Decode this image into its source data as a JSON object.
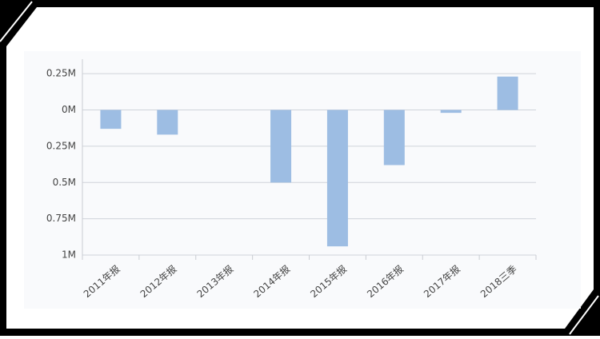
{
  "chart_data": {
    "type": "bar",
    "categories": [
      "2011年报",
      "2012年报",
      "2013年报",
      "2014年报",
      "2015年报",
      "2016年报",
      "2017年报",
      "2018三季"
    ],
    "values": [
      -0.13,
      -0.17,
      0,
      -0.5,
      -0.94,
      -0.38,
      -0.02,
      0.23
    ],
    "color": "#9dbde3",
    "ylim": [
      -1,
      0.35
    ],
    "yticks": [
      {
        "value": 0.25,
        "label": "0.25M"
      },
      {
        "value": 0,
        "label": "0M"
      },
      {
        "value": -0.25,
        "label": "0.25M"
      },
      {
        "value": -0.5,
        "label": "0.5M"
      },
      {
        "value": -0.75,
        "label": "0.75M"
      },
      {
        "value": -1,
        "label": "1M"
      }
    ],
    "grid": true
  }
}
